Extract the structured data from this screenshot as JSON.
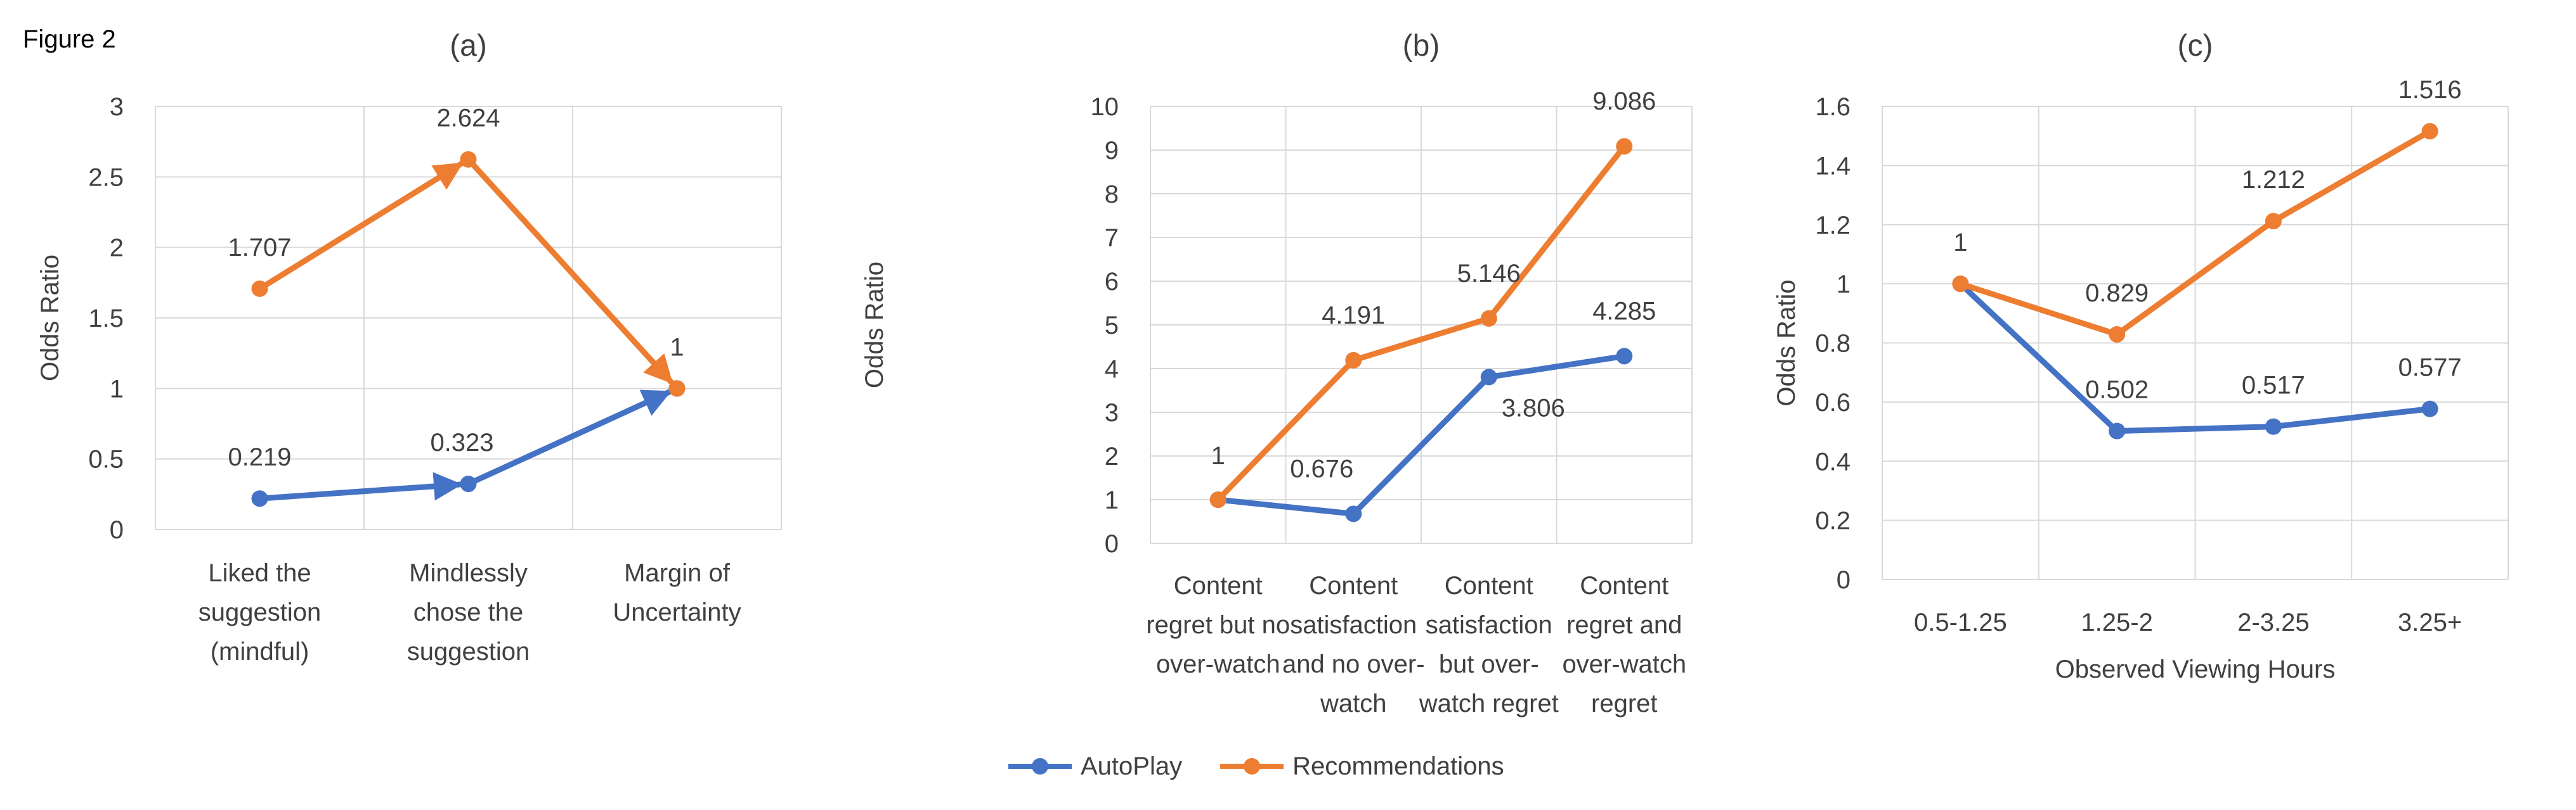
{
  "figure_label": "Figure 2",
  "colors": {
    "autoplay": "#4472C4",
    "recommendations": "#ED7D31"
  },
  "legend": [
    {
      "name": "AutoPlay",
      "color": "#4472C4"
    },
    {
      "name": "Recommendations",
      "color": "#ED7D31"
    }
  ],
  "chart_data": [
    {
      "id": "a",
      "type": "line",
      "title": "(a)",
      "ylabel": "Odds Ratio",
      "xlabel": "",
      "ylim": [
        0,
        3
      ],
      "yticks": [
        0,
        0.5,
        1,
        1.5,
        2,
        2.5,
        3
      ],
      "ytick_labels": [
        "0",
        "0.5",
        "1",
        "1.5",
        "2",
        "2.5",
        "3"
      ],
      "categories": [
        [
          "Liked the",
          "suggestion",
          "(mindful)"
        ],
        [
          "Mindlessly",
          "chose the",
          "suggestion"
        ],
        [
          "Margin of",
          "Uncertainty"
        ]
      ],
      "grid": true,
      "arrows": true,
      "series": [
        {
          "name": "AutoPlay",
          "color": "#4472C4",
          "values": [
            0.219,
            0.323,
            1
          ],
          "labels": [
            "0.219",
            "0.323",
            ""
          ]
        },
        {
          "name": "Recommendations",
          "color": "#ED7D31",
          "values": [
            1.707,
            2.624,
            1
          ],
          "labels": [
            "1.707",
            "2.624",
            "1"
          ]
        }
      ]
    },
    {
      "id": "b",
      "type": "line",
      "title": "(b)",
      "ylabel": "Odds Ratio",
      "xlabel": "",
      "ylim": [
        0,
        10
      ],
      "yticks": [
        0,
        1,
        2,
        3,
        4,
        5,
        6,
        7,
        8,
        9,
        10
      ],
      "ytick_labels": [
        "0",
        "1",
        "2",
        "3",
        "4",
        "5",
        "6",
        "7",
        "8",
        "9",
        "10"
      ],
      "categories": [
        [
          "Content",
          "regret but no",
          "over-watch"
        ],
        [
          "Content",
          "satisfaction",
          "and no over-",
          "watch"
        ],
        [
          "Content",
          "satisfaction",
          "but over-",
          "watch regret"
        ],
        [
          "Content",
          "regret and",
          "over-watch",
          "regret"
        ]
      ],
      "grid": true,
      "arrows": false,
      "series": [
        {
          "name": "AutoPlay",
          "color": "#4472C4",
          "values": [
            1,
            0.676,
            3.806,
            4.285
          ],
          "labels": [
            "",
            "0.676",
            "3.806",
            "4.285"
          ]
        },
        {
          "name": "Recommendations",
          "color": "#ED7D31",
          "values": [
            1,
            4.191,
            5.146,
            9.086
          ],
          "labels": [
            "1",
            "4.191",
            "5.146",
            "9.086"
          ]
        }
      ]
    },
    {
      "id": "c",
      "type": "line",
      "title": "(c)",
      "ylabel": "Odds Ratio",
      "xlabel": "Observed Viewing Hours",
      "ylim": [
        0,
        1.6
      ],
      "yticks": [
        0,
        0.2,
        0.4,
        0.6,
        0.8,
        1,
        1.2,
        1.4,
        1.6
      ],
      "ytick_labels": [
        "0",
        "0.2",
        "0.4",
        "0.6",
        "0.8",
        "1",
        "1.2",
        "1.4",
        "1.6"
      ],
      "categories": [
        [
          "0.5-1.25"
        ],
        [
          "1.25-2"
        ],
        [
          "2-3.25"
        ],
        [
          "3.25+"
        ]
      ],
      "grid": true,
      "arrows": false,
      "series": [
        {
          "name": "AutoPlay",
          "color": "#4472C4",
          "values": [
            1,
            0.502,
            0.517,
            0.577
          ],
          "labels": [
            "",
            "0.502",
            "0.517",
            "0.577"
          ]
        },
        {
          "name": "Recommendations",
          "color": "#ED7D31",
          "values": [
            1,
            0.829,
            1.212,
            1.516
          ],
          "labels": [
            "1",
            "0.829",
            "1.212",
            "1.516"
          ]
        }
      ]
    }
  ]
}
